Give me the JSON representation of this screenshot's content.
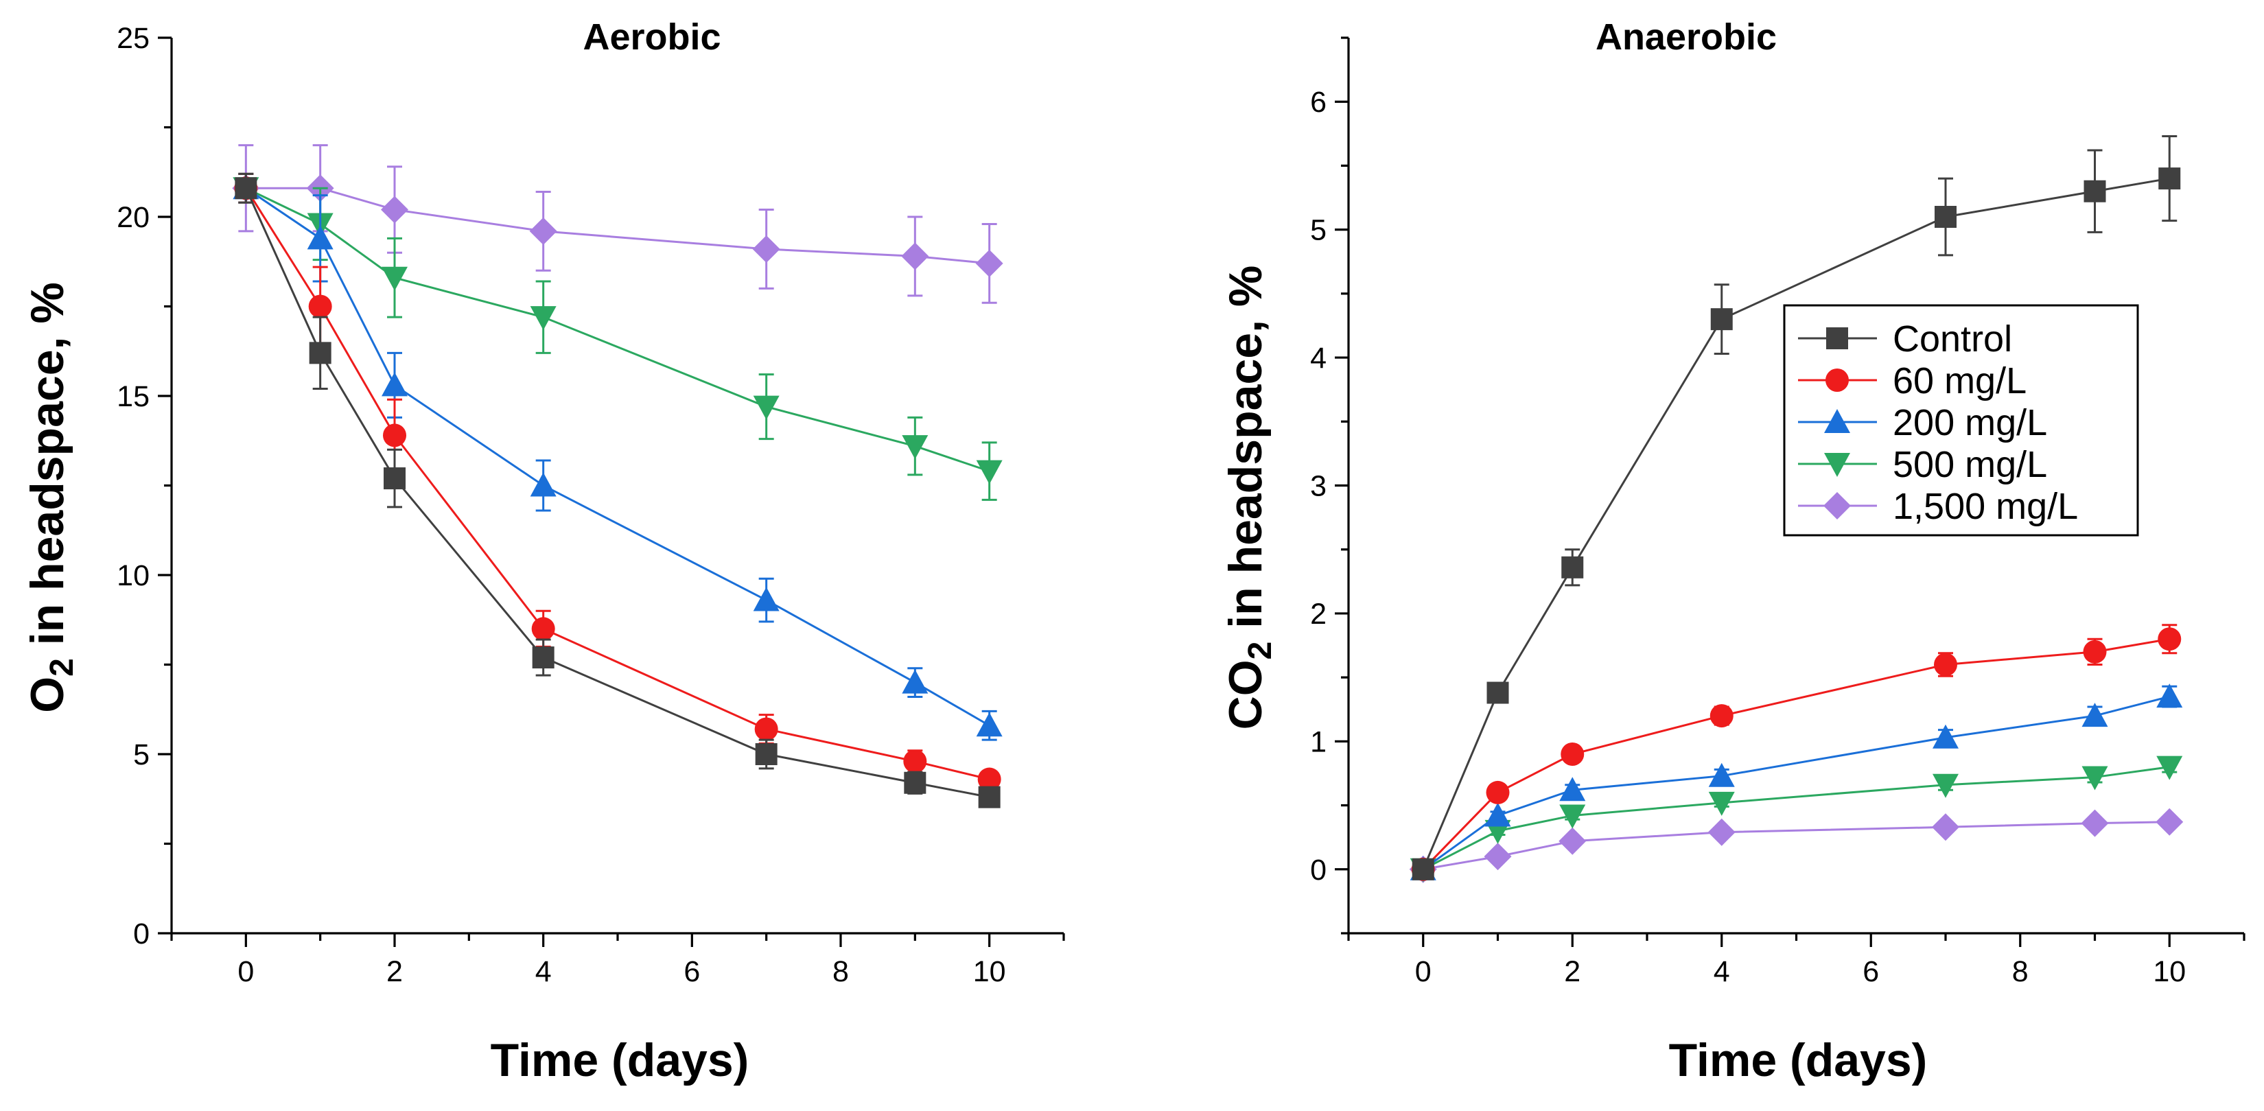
{
  "chart_data": [
    {
      "id": "aerobic",
      "type": "line",
      "title": "Aerobic",
      "xlabel": "Time (days)",
      "ylabel": "O",
      "ylabel_sub": "2",
      "ylabel_rest": " in headspace, %",
      "xlim": [
        -1,
        11
      ],
      "ylim": [
        0,
        25
      ],
      "xticks": [
        "0",
        "2",
        "4",
        "6",
        "8",
        "10"
      ],
      "yticks": [
        "0",
        "5",
        "10",
        "15",
        "20",
        "25"
      ],
      "x": [
        0,
        1,
        2,
        4,
        7,
        9,
        10
      ],
      "series": [
        {
          "name": "Control",
          "color": "#404040",
          "marker": "square",
          "values": [
            20.8,
            16.2,
            12.7,
            7.7,
            5.0,
            4.2,
            3.8
          ],
          "errors": [
            0.4,
            1.0,
            0.8,
            0.5,
            0.4,
            0.3,
            0.2
          ]
        },
        {
          "name": "60 mg/L",
          "color": "#ee1c1c",
          "marker": "circle",
          "values": [
            20.8,
            17.5,
            13.9,
            8.5,
            5.7,
            4.8,
            4.3
          ],
          "errors": [
            0.4,
            1.1,
            1.0,
            0.5,
            0.4,
            0.3,
            0.2
          ]
        },
        {
          "name": "200 mg/L",
          "color": "#1a6fd8",
          "marker": "triangle-up",
          "values": [
            20.8,
            19.4,
            15.3,
            12.5,
            9.3,
            7.0,
            5.8
          ],
          "errors": [
            0.4,
            1.2,
            0.9,
            0.7,
            0.6,
            0.4,
            0.4
          ]
        },
        {
          "name": "500 mg/L",
          "color": "#2ba860",
          "marker": "triangle-down",
          "values": [
            20.8,
            19.8,
            18.3,
            17.2,
            14.7,
            13.6,
            12.9
          ],
          "errors": [
            0.4,
            1.0,
            1.1,
            1.0,
            0.9,
            0.8,
            0.8
          ]
        },
        {
          "name": "1,500 mg/L",
          "color": "#a87ee0",
          "marker": "diamond",
          "values": [
            20.8,
            20.8,
            20.2,
            19.6,
            19.1,
            18.9,
            18.7
          ],
          "errors": [
            1.2,
            1.2,
            1.2,
            1.1,
            1.1,
            1.1,
            1.1
          ]
        }
      ]
    },
    {
      "id": "anaerobic",
      "type": "line",
      "title": "Anaerobic",
      "xlabel": "Time (days)",
      "ylabel": "CO",
      "ylabel_sub": "2",
      "ylabel_rest": " in headspace, %",
      "xlim": [
        -1,
        11
      ],
      "ylim": [
        -0.5,
        6.5
      ],
      "xticks": [
        "0",
        "2",
        "4",
        "6",
        "8",
        "10"
      ],
      "yticks": [
        "0",
        "1",
        "2",
        "3",
        "4",
        "5",
        "6"
      ],
      "x": [
        0,
        1,
        2,
        4,
        7,
        9,
        10
      ],
      "legend_position": "upper-right",
      "series": [
        {
          "name": "Control",
          "color": "#404040",
          "marker": "square",
          "values": [
            0.0,
            1.38,
            2.36,
            4.3,
            5.1,
            5.3,
            5.4
          ],
          "errors": [
            0.05,
            0.06,
            0.14,
            0.27,
            0.3,
            0.32,
            0.33
          ]
        },
        {
          "name": "60 mg/L",
          "color": "#ee1c1c",
          "marker": "circle",
          "values": [
            0.0,
            0.6,
            0.9,
            1.2,
            1.6,
            1.7,
            1.8
          ],
          "errors": [
            0.03,
            0.04,
            0.05,
            0.07,
            0.09,
            0.1,
            0.11
          ]
        },
        {
          "name": "200 mg/L",
          "color": "#1a6fd8",
          "marker": "triangle-up",
          "values": [
            0.0,
            0.42,
            0.62,
            0.73,
            1.03,
            1.2,
            1.35
          ],
          "errors": [
            0.03,
            0.03,
            0.04,
            0.05,
            0.06,
            0.07,
            0.08
          ]
        },
        {
          "name": "500 mg/L",
          "color": "#2ba860",
          "marker": "triangle-down",
          "values": [
            0.0,
            0.3,
            0.42,
            0.52,
            0.66,
            0.72,
            0.8
          ],
          "errors": [
            0.03,
            0.03,
            0.03,
            0.03,
            0.04,
            0.04,
            0.04
          ]
        },
        {
          "name": "1,500 mg/L",
          "color": "#a87ee0",
          "marker": "diamond",
          "values": [
            0.0,
            0.1,
            0.22,
            0.29,
            0.33,
            0.36,
            0.37
          ],
          "errors": [
            0.02,
            0.02,
            0.02,
            0.02,
            0.02,
            0.02,
            0.02
          ]
        }
      ]
    }
  ]
}
